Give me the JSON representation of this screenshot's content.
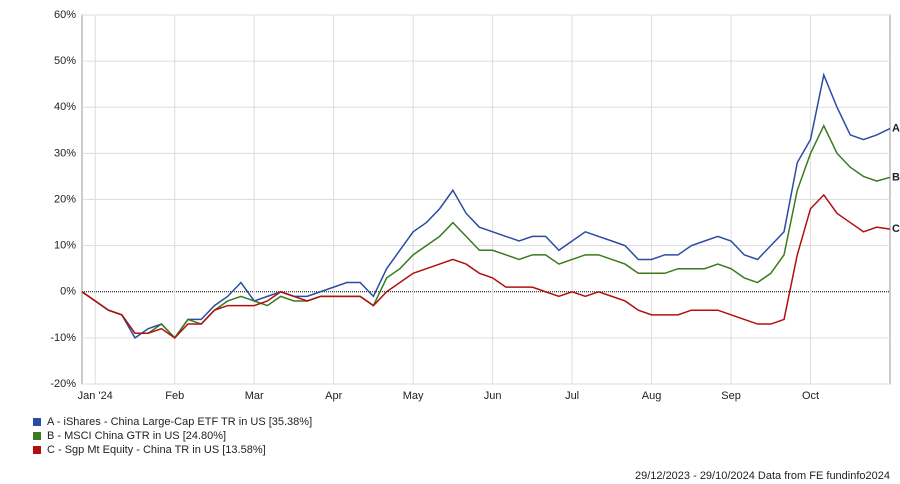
{
  "chart_data": {
    "type": "line",
    "categories": [
      null,
      "Jan '24",
      null,
      null,
      null,
      null,
      null,
      "Feb",
      null,
      null,
      null,
      null,
      null,
      "Mar",
      null,
      null,
      null,
      null,
      null,
      "Apr",
      null,
      null,
      null,
      null,
      null,
      "May",
      null,
      null,
      null,
      null,
      null,
      "Jun",
      null,
      null,
      null,
      null,
      null,
      "Jul",
      null,
      null,
      null,
      null,
      null,
      "Aug",
      null,
      null,
      null,
      null,
      null,
      "Sep",
      null,
      null,
      null,
      null,
      null,
      "Oct",
      null,
      null,
      null,
      null,
      null,
      null
    ],
    "series": [
      {
        "name": "A - iShares - China Large-Cap ETF TR in US [35.38%]",
        "end_label": "A",
        "color": "#2b4ca3",
        "values": [
          0,
          -2,
          -4,
          -5,
          -10,
          -8,
          -7,
          -10,
          -6,
          -6,
          -3,
          -1,
          2,
          -2,
          -1,
          0,
          -1,
          -1,
          0,
          1,
          2,
          2,
          -1,
          5,
          9,
          13,
          15,
          18,
          22,
          17,
          14,
          13,
          12,
          11,
          12,
          12,
          9,
          11,
          13,
          12,
          11,
          10,
          7,
          7,
          8,
          8,
          10,
          11,
          12,
          11,
          8,
          7,
          10,
          13,
          28,
          33,
          47,
          40,
          34,
          33,
          34,
          35.38
        ]
      },
      {
        "name": "B - MSCI China GTR in US [24.80%]",
        "end_label": "B",
        "color": "#3b7a1e",
        "values": [
          0,
          -2,
          -4,
          -5,
          -9,
          -9,
          -7,
          -10,
          -6,
          -7,
          -4,
          -2,
          -1,
          -2,
          -3,
          -1,
          -2,
          -2,
          -1,
          -1,
          -1,
          -1,
          -3,
          3,
          5,
          8,
          10,
          12,
          15,
          12,
          9,
          9,
          8,
          7,
          8,
          8,
          6,
          7,
          8,
          8,
          7,
          6,
          4,
          4,
          4,
          5,
          5,
          5,
          6,
          5,
          3,
          2,
          4,
          8,
          22,
          30,
          36,
          30,
          27,
          25,
          24,
          24.8
        ]
      },
      {
        "name": "C - Sgp Mt Equity - China TR in US [13.58%]",
        "end_label": "C",
        "color": "#b01010",
        "values": [
          0,
          -2,
          -4,
          -5,
          -9,
          -9,
          -8,
          -10,
          -7,
          -7,
          -4,
          -3,
          -3,
          -3,
          -2,
          0,
          -1,
          -2,
          -1,
          -1,
          -1,
          -1,
          -3,
          0,
          2,
          4,
          5,
          6,
          7,
          6,
          4,
          3,
          1,
          1,
          1,
          0,
          -1,
          0,
          -1,
          0,
          -1,
          -2,
          -4,
          -5,
          -5,
          -5,
          -4,
          -4,
          -4,
          -5,
          -6,
          -7,
          -7,
          -6,
          8,
          18,
          21,
          17,
          15,
          13,
          14,
          13.58
        ]
      }
    ],
    "ylim": [
      -20,
      60
    ],
    "yticks": [
      {
        "value": -20,
        "label": "-20%"
      },
      {
        "value": -10,
        "label": "-10%"
      },
      {
        "value": 0,
        "label": "0%"
      },
      {
        "value": 10,
        "label": "10%"
      },
      {
        "value": 20,
        "label": "20%"
      },
      {
        "value": 30,
        "label": "30%"
      },
      {
        "value": 40,
        "label": "40%"
      },
      {
        "value": 50,
        "label": "50%"
      },
      {
        "value": 60,
        "label": "60%"
      }
    ],
    "grid": true,
    "footer": "29/12/2023 - 29/10/2024 Data from FE fundinfo2024"
  }
}
